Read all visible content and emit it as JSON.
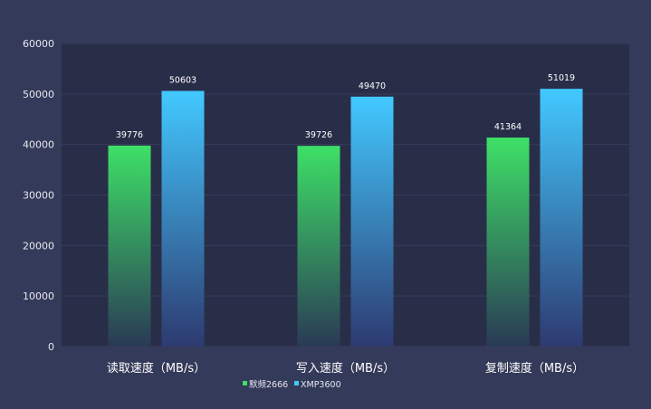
{
  "chart_data": {
    "type": "bar",
    "categories": [
      "读取速度（MB/s）",
      "写入速度（MB/s）",
      "复制速度（MB/s）"
    ],
    "series": [
      {
        "name": "默频2666",
        "values": [
          39776,
          39726,
          41364
        ],
        "color_top": "#3ee067",
        "color_bottom": "#2a3a55"
      },
      {
        "name": "XMP3600",
        "values": [
          50603,
          49470,
          51019
        ],
        "color_top": "#42c9ff",
        "color_bottom": "#2d3a70"
      }
    ],
    "ylim": [
      0,
      60000
    ],
    "yticks": [
      0,
      10000,
      20000,
      30000,
      40000,
      50000,
      60000
    ],
    "grid": true,
    "legend": "bottom-center",
    "colors": {
      "background": "#343a59",
      "plot_background": "#292e48"
    }
  }
}
